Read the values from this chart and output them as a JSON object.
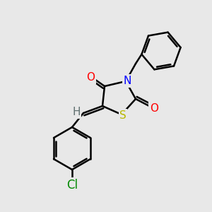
{
  "background_color": "#e8e8e8",
  "bond_color": "#000000",
  "bond_lw": 1.8,
  "atom_colors": {
    "O": "#ff0000",
    "N": "#0000ff",
    "S": "#b8b800",
    "Cl": "#008800",
    "H": "#607070",
    "C": "#000000"
  },
  "font_size": 11,
  "fig_size": [
    3.0,
    3.0
  ],
  "dpi": 100
}
